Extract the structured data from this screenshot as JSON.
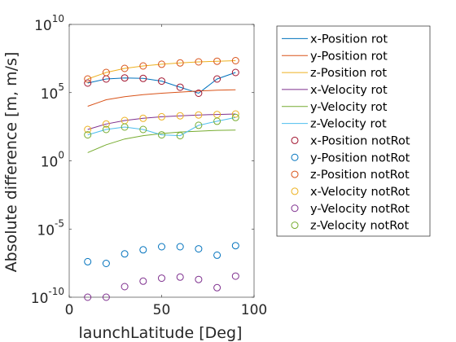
{
  "chart_data": {
    "type": "line",
    "xlabel": "launchLatitude [Deg]",
    "ylabel": "Absolute difference [m, m/s]",
    "xlim": [
      0,
      100
    ],
    "ylim": [
      1e-10,
      10000000000.0
    ],
    "yscale": "log",
    "grid": false,
    "legend_position": "outside-right",
    "x_ticks": [
      "0",
      "50",
      "100"
    ],
    "y_ticks": [
      {
        "base": "10",
        "exp": "-10",
        "value": 1e-10
      },
      {
        "base": "10",
        "exp": "-5",
        "value": 1e-05
      },
      {
        "base": "10",
        "exp": "0",
        "value": 1
      },
      {
        "base": "10",
        "exp": "5",
        "value": 100000.0
      },
      {
        "base": "10",
        "exp": "10",
        "value": 10000000000.0
      }
    ],
    "x": [
      10,
      20,
      30,
      40,
      50,
      60,
      70,
      80,
      90
    ],
    "series": [
      {
        "name": "x-Position rot",
        "style": "line",
        "color": "#0072BD",
        "values": [
          500000,
          1000000,
          1200000,
          1100000,
          700000,
          250000,
          90000,
          1000000,
          3000000
        ]
      },
      {
        "name": "y-Position rot",
        "style": "line",
        "color": "#D95319",
        "values": [
          10000,
          30000,
          50000,
          70000,
          90000,
          110000,
          130000,
          150000,
          160000
        ]
      },
      {
        "name": "z-Position rot",
        "style": "line",
        "color": "#EDB120",
        "values": [
          1000000,
          3000000,
          6000000,
          9000000,
          12000000,
          15000000,
          18000000,
          20000000,
          22000000
        ]
      },
      {
        "name": "x-Velocity rot",
        "style": "line",
        "color": "#7E2F8E",
        "values": [
          200,
          500,
          900,
          1300,
          1700,
          2000,
          2300,
          2500,
          2700
        ]
      },
      {
        "name": "y-Velocity rot",
        "style": "line",
        "color": "#77AC30",
        "values": [
          4,
          15,
          40,
          70,
          100,
          130,
          150,
          170,
          180
        ]
      },
      {
        "name": "z-Velocity rot",
        "style": "line",
        "color": "#4DBEEE",
        "values": [
          80,
          200,
          300,
          200,
          80,
          70,
          400,
          800,
          1500
        ]
      },
      {
        "name": "x-Position notRot",
        "style": "marker",
        "color": "#A2142F",
        "values": [
          500000,
          1000000,
          1200000,
          1100000,
          700000,
          250000,
          90000,
          1000000,
          3000000
        ]
      },
      {
        "name": "y-Position notRot",
        "style": "marker",
        "color": "#0072BD",
        "values": [
          4e-08,
          3e-08,
          1.5e-07,
          3e-07,
          5e-07,
          5e-07,
          3.5e-07,
          1.2e-07,
          6e-07
        ]
      },
      {
        "name": "z-Position notRot",
        "style": "marker",
        "color": "#D95319",
        "values": [
          1000000,
          3000000,
          6000000,
          9000000,
          12000000,
          15000000,
          18000000,
          20000000,
          22000000
        ]
      },
      {
        "name": "x-Velocity notRot",
        "style": "marker",
        "color": "#EDB120",
        "values": [
          200,
          500,
          900,
          1300,
          1700,
          2000,
          2300,
          2500,
          2700
        ]
      },
      {
        "name": "y-Velocity notRot",
        "style": "marker",
        "color": "#7E2F8E",
        "values": [
          1e-10,
          1e-10,
          6e-10,
          1.5e-09,
          2.5e-09,
          3e-09,
          2e-09,
          5e-10,
          3.5e-09
        ]
      },
      {
        "name": "z-Velocity notRot",
        "style": "marker",
        "color": "#77AC30",
        "values": [
          80,
          200,
          300,
          200,
          80,
          70,
          400,
          800,
          1500
        ]
      }
    ]
  }
}
